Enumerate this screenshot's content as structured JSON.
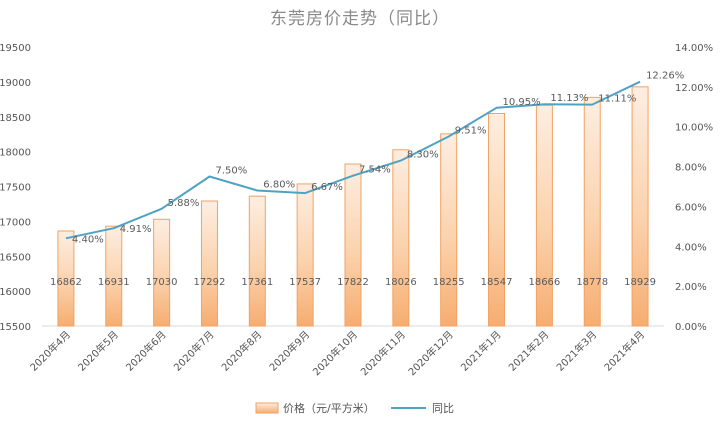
{
  "chart_data": {
    "title": "东莞房价走势（同比）",
    "type": "bar+line",
    "categories": [
      "2020年4月",
      "2020年5月",
      "2020年6月",
      "2020年7月",
      "2020年8月",
      "2020年9月",
      "2020年10月",
      "2020年11月",
      "2020年12月",
      "2021年1月",
      "2021年2月",
      "2021年3月",
      "2021年4月"
    ],
    "series": [
      {
        "name": "价格（元/平方米）",
        "type": "bar",
        "axis": "left",
        "color": "#f5a05a",
        "values": [
          16862,
          16931,
          17030,
          17292,
          17361,
          17537,
          17822,
          18026,
          18255,
          18547,
          18666,
          18778,
          18929
        ],
        "labels": [
          "16862",
          "16931",
          "17030",
          "17292",
          "17361",
          "17537",
          "17822",
          "18026",
          "18255",
          "18547",
          "18666",
          "18778",
          "18929"
        ]
      },
      {
        "name": "同比",
        "type": "line",
        "axis": "right",
        "color": "#4ea3c4",
        "values": [
          4.4,
          4.91,
          5.88,
          7.5,
          6.8,
          6.67,
          7.54,
          8.3,
          9.51,
          10.95,
          11.13,
          11.11,
          12.26
        ],
        "labels": [
          "4.40%",
          "4.91%",
          "5.88%",
          "7.50%",
          "6.80%",
          "6.67%",
          "7.54%",
          "8.30%",
          "9.51%",
          "10.95%",
          "11.13%",
          "11.11%",
          "12.26%"
        ]
      }
    ],
    "y_left": {
      "min": 15500,
      "max": 19500,
      "step": 500,
      "ticks": [
        "15500",
        "16000",
        "16500",
        "17000",
        "17500",
        "18000",
        "18500",
        "19000",
        "19500"
      ]
    },
    "y_right": {
      "min": 0,
      "max": 14,
      "step": 2,
      "ticks": [
        "0.00%",
        "2.00%",
        "4.00%",
        "6.00%",
        "8.00%",
        "10.00%",
        "12.00%",
        "14.00%"
      ]
    },
    "grid": false,
    "legend": "bottom-center"
  }
}
